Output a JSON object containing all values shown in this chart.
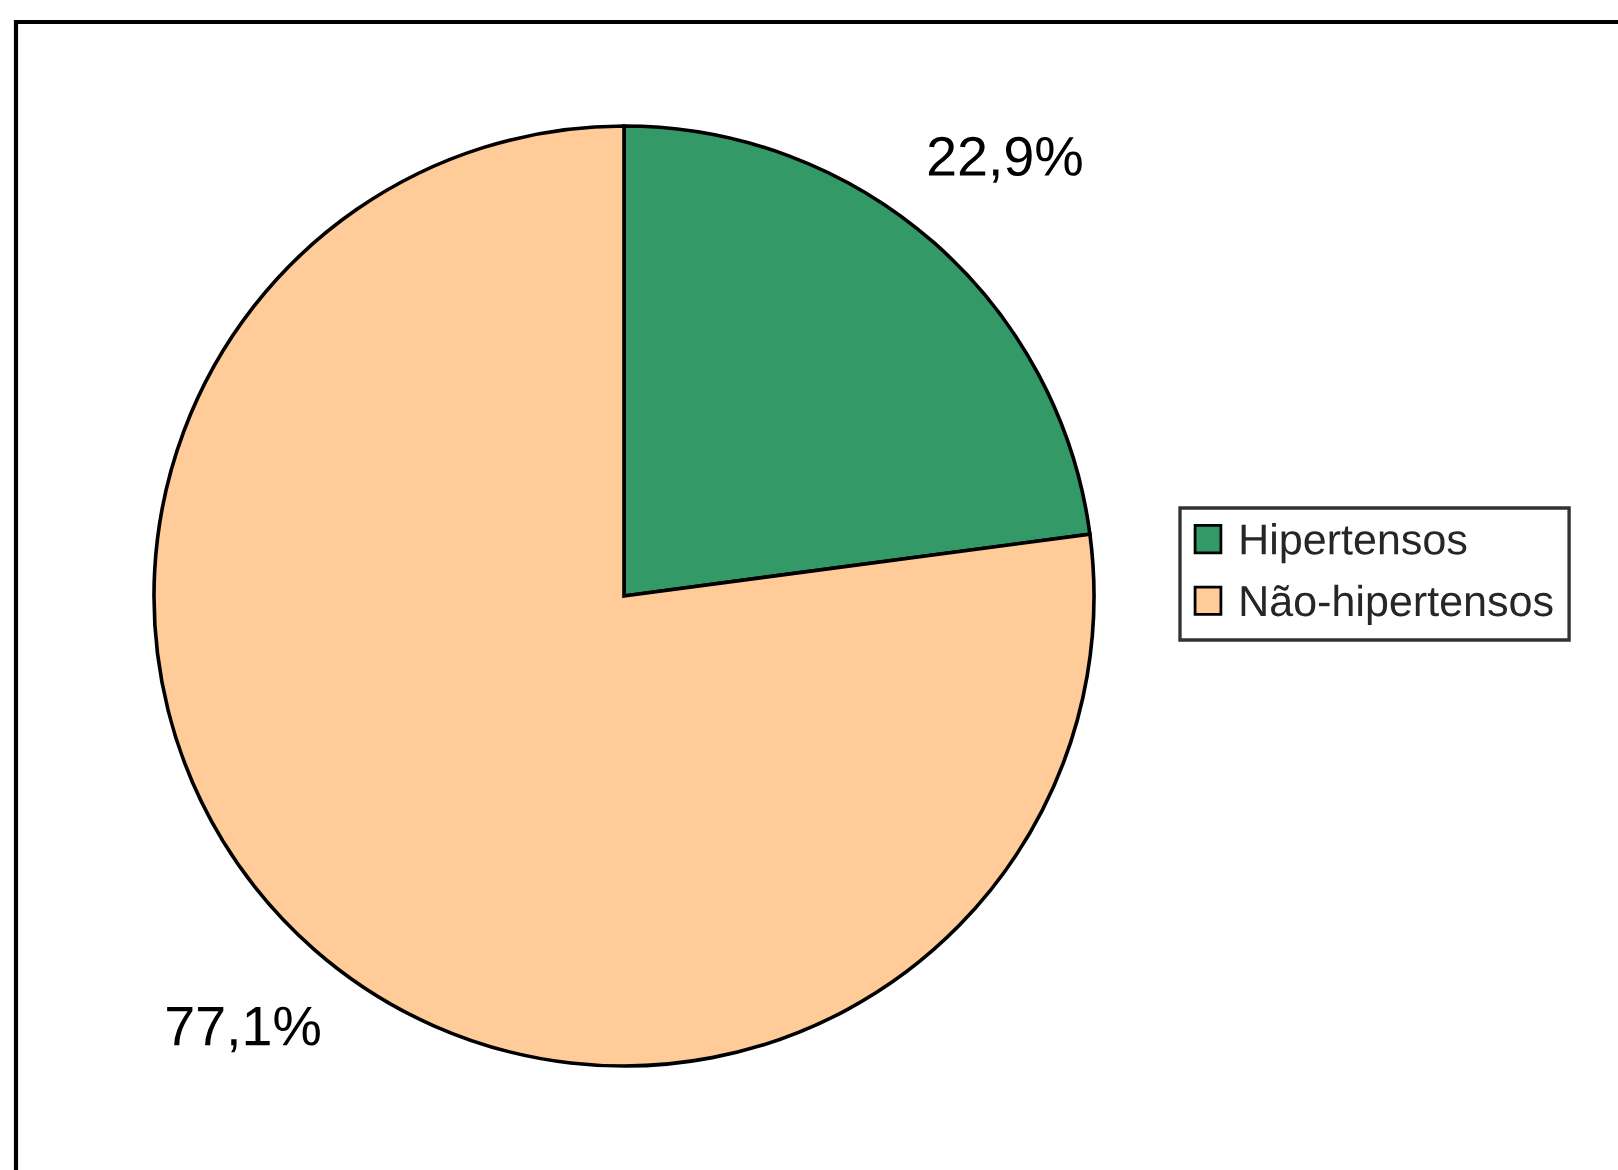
{
  "chart_data": {
    "type": "pie",
    "categories": [
      "Hipertensos",
      "Não-hipertensos"
    ],
    "values": [
      22.9,
      77.1
    ],
    "colors": [
      "#339966",
      "#ffcc99"
    ],
    "value_labels": [
      "22,9%",
      "77,1%"
    ],
    "legend": "right"
  }
}
